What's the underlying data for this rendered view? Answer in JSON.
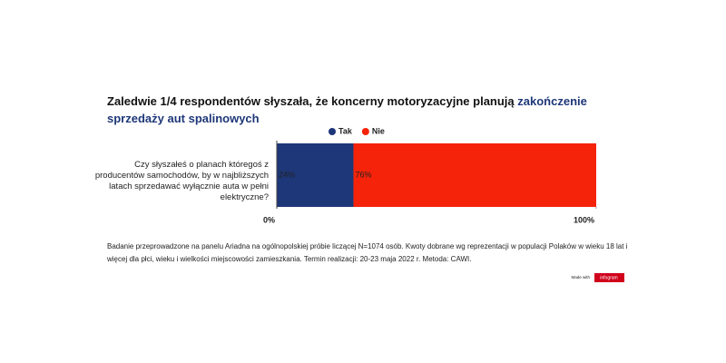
{
  "chart_data": {
    "type": "stacked-bar-horizontal",
    "title": "Zaledwie 1/4 respondentów słyszała, że koncerny motoryzacyjne planują",
    "title_highlight": "zakończenie sprzedaży aut spalinowych",
    "categories": [
      "Czy słyszałeś o planach któregoś z producentów samochodów, by w najbliższych latach sprzedawać wyłącznie auta w pełni elektryczne?"
    ],
    "series": [
      {
        "name": "Tak",
        "color": "#1e3778",
        "values": [
          24
        ],
        "value_labels": [
          "24%"
        ]
      },
      {
        "name": "Nie",
        "color": "#f5230a",
        "values": [
          76
        ],
        "value_labels": [
          "76%"
        ]
      }
    ],
    "xlim": [
      0,
      100
    ],
    "xticks": [
      {
        "value": 0,
        "label": "0%"
      },
      {
        "value": 100,
        "label": "100%"
      }
    ],
    "footnote": "Badanie przeprowadzone na panelu Ariadna na ogólnopolskiej próbie liczącej N=1074 osób. Kwoty dobrane wg reprezentacji w populacji Polaków w wieku 18 lat i więcej dla płci, wieku i wielkości miejscowości zamieszkania. Termin realizacji:  20-23 maja  2022 r. Metoda: CAWI.",
    "branding": {
      "prefix": "Made with",
      "name": "infogram"
    }
  }
}
